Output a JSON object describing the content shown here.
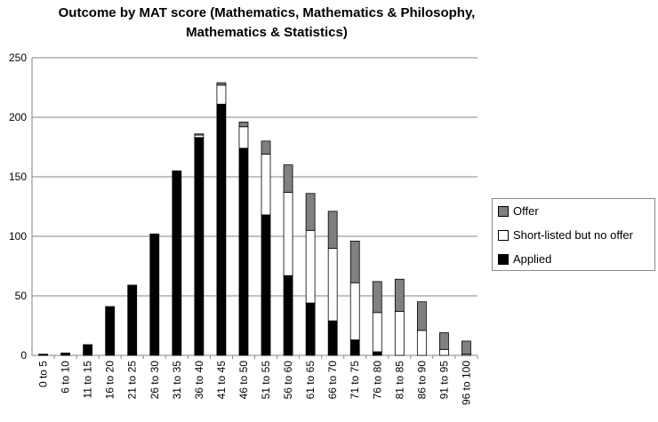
{
  "chart_data": {
    "type": "bar",
    "stacked": true,
    "title_lines": [
      "Outcome by MAT score (Mathematics, Mathematics & Philosophy,",
      "Mathematics & Statistics)"
    ],
    "categories": [
      "0 to 5",
      "6 to 10",
      "11 to 15",
      "16 to 20",
      "21 to 25",
      "26 to 30",
      "31 to 35",
      "36 to 40",
      "41 to 45",
      "46 to 50",
      "51 to 55",
      "56 to 60",
      "61 to 65",
      "66 to 70",
      "71 to 75",
      "76 to 80",
      "81 to 85",
      "86 to 90",
      "91 to 95",
      "96 to 100"
    ],
    "series": [
      {
        "name": "Applied",
        "color": "#000000",
        "values": [
          1,
          2,
          9,
          41,
          59,
          102,
          155,
          183,
          211,
          174,
          118,
          67,
          44,
          29,
          13,
          3,
          0,
          0,
          0,
          0
        ]
      },
      {
        "name": "Short-listed but no offer",
        "color": "#ffffff",
        "values": [
          0,
          0,
          0,
          0,
          0,
          0,
          0,
          2,
          16,
          18,
          51,
          70,
          61,
          61,
          48,
          33,
          37,
          21,
          5,
          1
        ]
      },
      {
        "name": "Offer",
        "color": "#808080",
        "values": [
          0,
          0,
          0,
          0,
          0,
          0,
          0,
          1,
          2,
          4,
          11,
          23,
          31,
          31,
          35,
          26,
          27,
          24,
          14,
          11
        ]
      }
    ],
    "ylim": [
      0,
      250
    ],
    "yticks": [
      0,
      50,
      100,
      150,
      200,
      250
    ],
    "grid": true,
    "legend_position": "right",
    "legend_order": [
      "Offer",
      "Short-listed but no offer",
      "Applied"
    ]
  }
}
